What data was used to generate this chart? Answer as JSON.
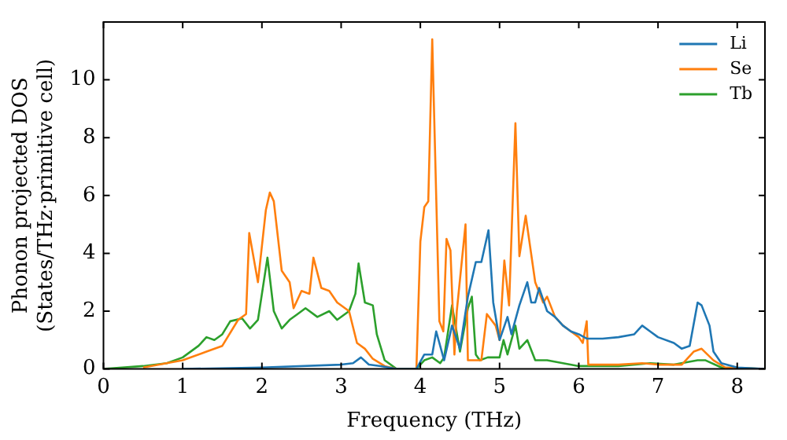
{
  "chart_data": {
    "type": "line",
    "xlabel": "Frequency (THz)",
    "ylabel": "Phonon projected DOS\n(States/THz·primitive cell)",
    "xlim": [
      0,
      8.35
    ],
    "ylim": [
      0,
      12
    ],
    "xticks": [
      0,
      1,
      2,
      3,
      4,
      5,
      6,
      7,
      8
    ],
    "yticks": [
      0,
      2,
      4,
      6,
      8,
      10
    ],
    "grid": false,
    "legend": "top right",
    "marker": "none",
    "line_style": "solid",
    "series": [
      {
        "name": "Li",
        "color": "#1f77b4",
        "x": [
          1,
          2,
          3,
          3.15,
          3.25,
          3.35,
          3.5,
          3.7,
          3.95,
          4.05,
          4.15,
          4.2,
          4.3,
          4.4,
          4.5,
          4.6,
          4.7,
          4.77,
          4.86,
          4.92,
          5.0,
          5.1,
          5.15,
          5.25,
          5.35,
          5.4,
          5.45,
          5.5,
          5.6,
          5.7,
          5.8,
          5.9,
          6.0,
          6.1,
          6.3,
          6.5,
          6.7,
          6.8,
          6.9,
          7.0,
          7.2,
          7.3,
          7.4,
          7.5,
          7.55,
          7.65,
          7.7,
          7.8,
          8.0,
          8.35
        ],
        "values": [
          0,
          0.05,
          0.15,
          0.2,
          0.4,
          0.15,
          0.1,
          0,
          0,
          0.5,
          0.5,
          1.3,
          0.3,
          1.5,
          0.7,
          2.5,
          3.7,
          3.7,
          4.8,
          2.3,
          1.0,
          1.8,
          1.2,
          2.2,
          3.0,
          2.3,
          2.3,
          2.8,
          2.0,
          1.8,
          1.5,
          1.3,
          1.2,
          1.05,
          1.05,
          1.1,
          1.2,
          1.5,
          1.3,
          1.1,
          0.9,
          0.7,
          0.8,
          2.3,
          2.2,
          1.5,
          0.6,
          0.2,
          0.05,
          0
        ]
      },
      {
        "name": "Se",
        "color": "#ff7f0e",
        "x": [
          0.5,
          1.0,
          1.3,
          1.5,
          1.7,
          1.8,
          1.84,
          1.95,
          2.05,
          2.1,
          2.15,
          2.25,
          2.35,
          2.4,
          2.5,
          2.6,
          2.65,
          2.75,
          2.85,
          2.95,
          3.1,
          3.2,
          3.3,
          3.4,
          3.55,
          3.7,
          3.95,
          4.0,
          4.05,
          4.1,
          4.15,
          4.24,
          4.29,
          4.33,
          4.38,
          4.43,
          4.46,
          4.57,
          4.6,
          4.77,
          4.84,
          4.95,
          5.0,
          5.06,
          5.12,
          5.2,
          5.25,
          5.33,
          5.45,
          5.55,
          5.6,
          5.7,
          5.8,
          5.9,
          6.0,
          6.05,
          6.1,
          6.12,
          6.5,
          6.8,
          7.0,
          7.3,
          7.45,
          7.55,
          7.7,
          7.85,
          8.35
        ],
        "values": [
          0.05,
          0.3,
          0.6,
          0.8,
          1.7,
          1.9,
          4.7,
          3.0,
          5.5,
          6.1,
          5.8,
          3.4,
          3.0,
          2.1,
          2.7,
          2.6,
          3.85,
          2.8,
          2.7,
          2.3,
          2.0,
          0.9,
          0.7,
          0.35,
          0.1,
          0,
          0,
          4.4,
          5.6,
          5.8,
          11.4,
          1.65,
          1.3,
          4.5,
          4.1,
          0.5,
          2.0,
          5.0,
          0.3,
          0.3,
          1.9,
          1.5,
          1.0,
          3.75,
          2.2,
          8.5,
          3.9,
          5.3,
          3.0,
          2.3,
          2.5,
          1.8,
          1.5,
          1.3,
          1.1,
          0.9,
          1.65,
          0.15,
          0.15,
          0.2,
          0.15,
          0.15,
          0.6,
          0.7,
          0.3,
          0.05,
          0
        ]
      },
      {
        "name": "Tb",
        "color": "#2ca02c",
        "x": [
          0,
          0.5,
          0.8,
          1.0,
          1.2,
          1.3,
          1.4,
          1.5,
          1.6,
          1.75,
          1.85,
          1.95,
          2.07,
          2.15,
          2.25,
          2.35,
          2.45,
          2.55,
          2.7,
          2.85,
          2.95,
          3.1,
          3.18,
          3.22,
          3.3,
          3.4,
          3.45,
          3.55,
          3.7,
          3.95,
          4.05,
          4.15,
          4.25,
          4.3,
          4.4,
          4.5,
          4.6,
          4.65,
          4.7,
          4.75,
          4.85,
          5.0,
          5.05,
          5.1,
          5.2,
          5.25,
          5.35,
          5.45,
          5.6,
          5.8,
          6.0,
          6.5,
          6.9,
          7.2,
          7.5,
          7.6,
          7.8,
          8.35
        ],
        "values": [
          0,
          0.1,
          0.2,
          0.4,
          0.8,
          1.1,
          1.0,
          1.2,
          1.65,
          1.75,
          1.4,
          1.7,
          3.85,
          2.0,
          1.4,
          1.7,
          1.9,
          2.1,
          1.8,
          2.0,
          1.7,
          2.0,
          2.6,
          3.65,
          2.3,
          2.2,
          1.2,
          0.3,
          0,
          0,
          0.3,
          0.4,
          0.2,
          0.4,
          2.2,
          0.6,
          2.1,
          2.5,
          0.5,
          0.3,
          0.4,
          0.4,
          1.0,
          0.5,
          1.5,
          0.7,
          1.0,
          0.3,
          0.3,
          0.2,
          0.1,
          0.1,
          0.2,
          0.15,
          0.3,
          0.3,
          0.05,
          0
        ]
      }
    ]
  }
}
